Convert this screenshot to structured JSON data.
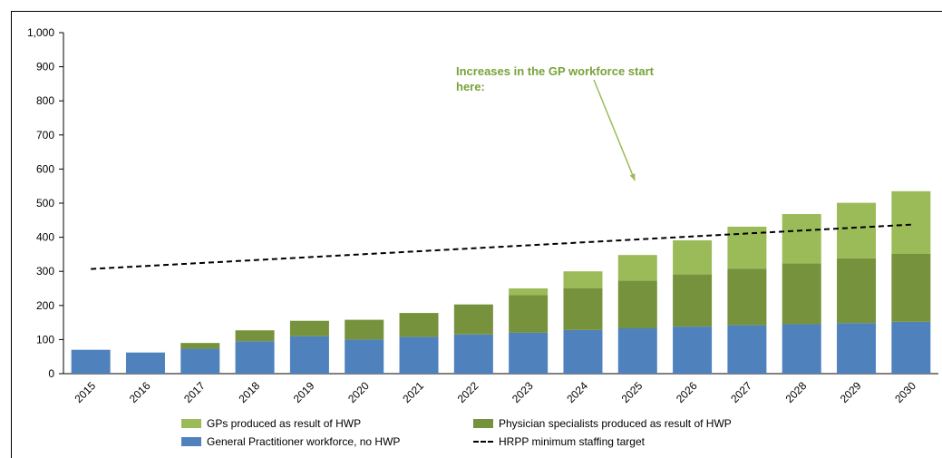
{
  "colors": {
    "gp_hwp": "#9bbb59",
    "specialists_hwp": "#76923c",
    "gp_no_hwp": "#4f81bd",
    "target_line": "#000000",
    "annotation": "#77a33a"
  },
  "chart_data": {
    "type": "bar",
    "stacked": true,
    "categories": [
      "2015",
      "2016",
      "2017",
      "2018",
      "2019",
      "2020",
      "2021",
      "2022",
      "2023",
      "2024",
      "2025",
      "2026",
      "2027",
      "2028",
      "2029",
      "2030"
    ],
    "series": [
      {
        "name": "General Practitioner workforce, no HWP",
        "values": [
          70,
          62,
          73,
          95,
          110,
          100,
          108,
          115,
          120,
          128,
          133,
          138,
          142,
          145,
          148,
          152
        ]
      },
      {
        "name": "Physician specialists produced as result of HWP",
        "values": [
          0,
          0,
          17,
          32,
          45,
          58,
          70,
          88,
          110,
          122,
          140,
          153,
          166,
          178,
          190,
          200
        ]
      },
      {
        "name": "GPs produced as result of HWP",
        "values": [
          0,
          0,
          0,
          0,
          0,
          0,
          0,
          0,
          20,
          50,
          75,
          100,
          123,
          145,
          163,
          183
        ]
      }
    ],
    "line_series": {
      "name": "HRPP minimum staffing target",
      "style": "dashed",
      "start": {
        "x": "2015",
        "y": 307
      },
      "end": {
        "x": "2030",
        "y": 437
      }
    },
    "ylim": [
      0,
      1000
    ],
    "yticks": [
      "0",
      "100",
      "200",
      "300",
      "400",
      "500",
      "600",
      "700",
      "800",
      "900",
      "1,000"
    ],
    "grid": false,
    "legend_position": "bottom",
    "annotation": {
      "text": "Increases in the GP workforce start here:",
      "points_to": {
        "x": "2025",
        "y": 550
      }
    }
  },
  "legend": {
    "gp_hwp": "GPs produced as result of HWP",
    "specialists_hwp": "Physician specialists produced as result of HWP",
    "gp_no_hwp": "General Practitioner workforce, no HWP",
    "target": "HRPP minimum staffing target"
  }
}
